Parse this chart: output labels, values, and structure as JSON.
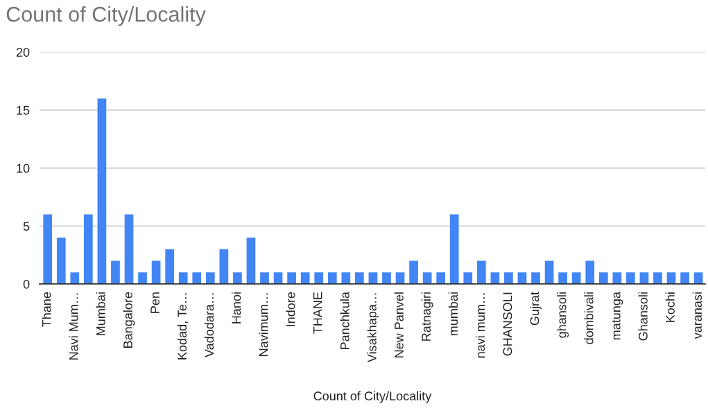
{
  "chart_data": {
    "type": "bar",
    "title": "Count of City/Locality",
    "xlabel": "Count of City/Locality",
    "categories": [
      "Thane",
      null,
      "Navi Mum…",
      null,
      "Mumbai",
      null,
      "Bangalore",
      null,
      "Pen",
      null,
      "Kodad, Te…",
      null,
      "Vadodara…",
      null,
      "Hanoi",
      null,
      "Navimum…",
      null,
      "Indore",
      null,
      "THANE",
      null,
      "Panchkula",
      null,
      "Visakhapa…",
      null,
      "New Panvel",
      null,
      "Ratnagiri",
      null,
      "mumbai",
      null,
      "navi mum…",
      null,
      "GHANSOLI",
      null,
      "Gujrat",
      null,
      "ghansoli",
      null,
      "dombivali",
      null,
      "matunga",
      null,
      "Ghansoli",
      null,
      "Kochi",
      null,
      "varanasi"
    ],
    "values": [
      6,
      4,
      1,
      6,
      16,
      2,
      6,
      1,
      2,
      3,
      1,
      1,
      1,
      3,
      1,
      4,
      1,
      1,
      1,
      1,
      1,
      1,
      1,
      1,
      1,
      1,
      1,
      2,
      1,
      1,
      6,
      1,
      2,
      1,
      1,
      1,
      1,
      2,
      1,
      1,
      2,
      1,
      1,
      1,
      1,
      1,
      1,
      1,
      1
    ],
    "color": "#4285f4",
    "ylim": [
      0,
      20
    ],
    "yticks": [
      0,
      5,
      10,
      15,
      20
    ],
    "grid": "y"
  }
}
